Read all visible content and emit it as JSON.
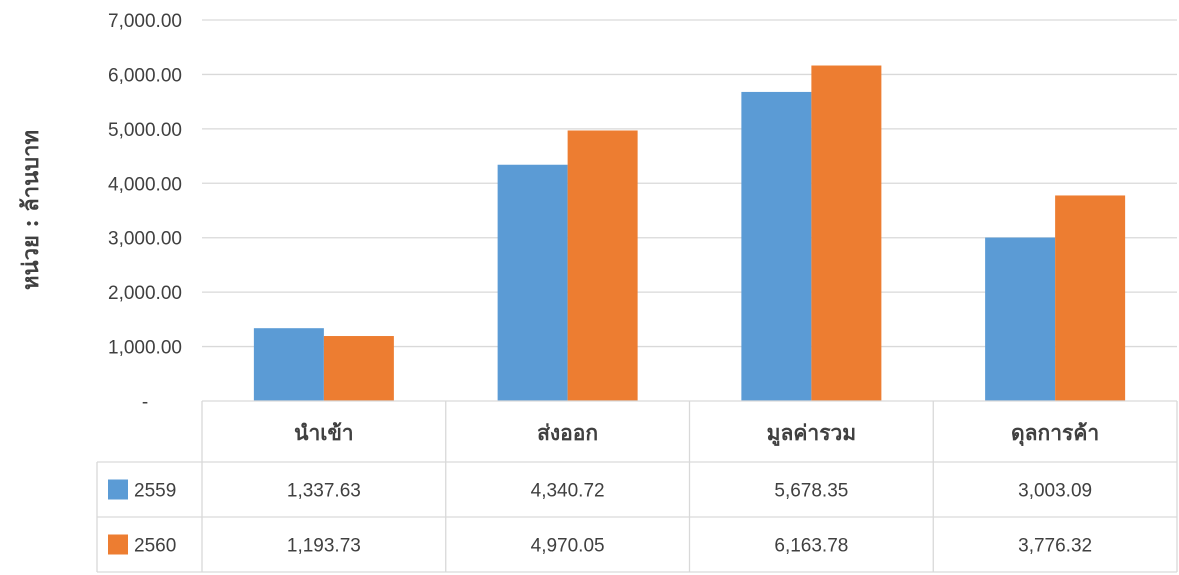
{
  "chart_data": {
    "type": "bar",
    "ylabel": "หน่วย : ล้านบาท",
    "ylim": [
      0,
      7000
    ],
    "yticks": [
      {
        "value": 0,
        "label": "-"
      },
      {
        "value": 1000,
        "label": "1,000.00"
      },
      {
        "value": 2000,
        "label": "2,000.00"
      },
      {
        "value": 3000,
        "label": "3,000.00"
      },
      {
        "value": 4000,
        "label": "4,000.00"
      },
      {
        "value": 5000,
        "label": "5,000.00"
      },
      {
        "value": 6000,
        "label": "6,000.00"
      },
      {
        "value": 7000,
        "label": "7,000.00"
      }
    ],
    "grid": true,
    "legend": "data-table-left",
    "categories": [
      "นำเข้า",
      "ส่งออก",
      "มูลค่ารวม",
      "ดุลการค้า"
    ],
    "series": [
      {
        "name": "2559",
        "color": "#5B9BD5",
        "values": [
          1337.63,
          4340.72,
          5678.35,
          3003.09
        ],
        "labels": [
          "1,337.63",
          "4,340.72",
          "5,678.35",
          "3,003.09"
        ]
      },
      {
        "name": "2560",
        "color": "#ED7D31",
        "values": [
          1193.73,
          4970.05,
          6163.78,
          3776.32
        ],
        "labels": [
          "1,193.73",
          "4,970.05",
          "6,163.78",
          "3,776.32"
        ]
      }
    ]
  }
}
